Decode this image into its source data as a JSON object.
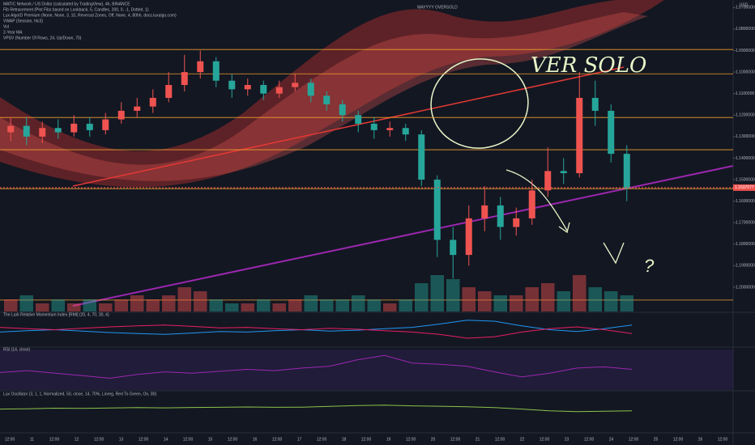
{
  "chart_data": {
    "type": "candlestick",
    "title": "MATIC Network / US Dollar (calculated by TradingView), 4h, BINANCE",
    "indicators_legend": [
      "Fib Retracement (Plot Fibs based on Lookback, 5, Candles, 200, 0, -1, Dotted, 1)",
      "Lux AlgoID Premium (None, None, 3, 10, Reversal Zones, Off, None, 4, 80hh, docs.luxalgo.com)",
      "VWAP (Session, hlc3)",
      "Vol",
      "2-Year MA",
      "VPSV (Number Of Rows, 24, Up/Down, 70)"
    ],
    "headline": "MAYYYY OVERSOLD",
    "currency": "USD",
    "annotations": [
      "VER SOLO",
      "?"
    ],
    "last_price": {
      "value": 1.1537077,
      "label": "1.1537077"
    },
    "ylim": [
      1.0695,
      1.2113
    ],
    "yticks": [
      {
        "value": 1.2,
        "label": "1.2000000"
      },
      {
        "value": 1.19,
        "label": "1.1900000"
      },
      {
        "value": 1.18,
        "label": "1.1800000"
      },
      {
        "value": 1.17,
        "label": "1.1700000"
      },
      {
        "value": 1.16,
        "label": "1.1600000"
      },
      {
        "value": 1.15,
        "label": "1.1500000"
      },
      {
        "value": 1.14,
        "label": "1.1400000"
      },
      {
        "value": 1.13,
        "label": "1.1300000"
      },
      {
        "value": 1.12,
        "label": "1.1200000"
      },
      {
        "value": 1.11,
        "label": "1.1100000"
      },
      {
        "value": 1.1,
        "label": "1.1000000"
      },
      {
        "value": 1.09,
        "label": "1.0900000"
      },
      {
        "value": 1.08,
        "label": "1.0800000"
      },
      {
        "value": 1.07,
        "label": "1.0700000"
      }
    ],
    "fib_levels": [
      1.206,
      1.1542,
      1.1361,
      1.1211,
      1.1008,
      1.0895
    ],
    "time_labels": [
      "12:00",
      "11",
      "12:00",
      "12",
      "12:00",
      "13",
      "12:00",
      "14",
      "12:00",
      "15",
      "12:00",
      "16",
      "12:00",
      "17",
      "12:00",
      "18",
      "12:00",
      "19",
      "12:00",
      "20",
      "12:00",
      "21",
      "12:00",
      "22",
      "12:00",
      "23",
      "12:00",
      "24",
      "12:00",
      "25",
      "12:00",
      "26",
      "12:00"
    ],
    "open": [
      1.128,
      1.125,
      1.13,
      1.126,
      1.128,
      1.124,
      1.127,
      1.122,
      1.118,
      1.116,
      1.112,
      1.106,
      1.1,
      1.095,
      1.104,
      1.108,
      1.106,
      1.11,
      1.107,
      1.105,
      1.111,
      1.115,
      1.12,
      1.124,
      1.127,
      1.126,
      1.129,
      1.15,
      1.178,
      1.185,
      1.168,
      1.162,
      1.172,
      1.168,
      1.155,
      1.146,
      1.147,
      1.112,
      1.118,
      1.138
    ],
    "high": [
      1.132,
      1.134,
      1.133,
      1.131,
      1.13,
      1.13,
      1.129,
      1.124,
      1.121,
      1.119,
      1.114,
      1.109,
      1.103,
      1.107,
      1.112,
      1.111,
      1.113,
      1.112,
      1.109,
      1.114,
      1.118,
      1.123,
      1.128,
      1.131,
      1.13,
      1.132,
      1.153,
      1.186,
      1.196,
      1.19,
      1.174,
      1.178,
      1.176,
      1.171,
      1.158,
      1.152,
      1.149,
      1.125,
      1.142,
      1.16
    ],
    "low": [
      1.121,
      1.121,
      1.123,
      1.122,
      1.12,
      1.121,
      1.119,
      1.114,
      1.112,
      1.108,
      1.1,
      1.092,
      1.09,
      1.093,
      1.101,
      1.103,
      1.104,
      1.104,
      1.101,
      1.103,
      1.109,
      1.113,
      1.118,
      1.121,
      1.123,
      1.124,
      1.127,
      1.148,
      1.172,
      1.162,
      1.153,
      1.158,
      1.163,
      1.15,
      1.135,
      1.14,
      1.1,
      1.104,
      1.115,
      1.134
    ],
    "close": [
      1.125,
      1.13,
      1.126,
      1.128,
      1.124,
      1.127,
      1.122,
      1.118,
      1.116,
      1.112,
      1.106,
      1.1,
      1.095,
      1.104,
      1.108,
      1.106,
      1.11,
      1.107,
      1.105,
      1.111,
      1.115,
      1.12,
      1.124,
      1.127,
      1.126,
      1.129,
      1.15,
      1.178,
      1.185,
      1.168,
      1.162,
      1.172,
      1.168,
      1.155,
      1.146,
      1.147,
      1.112,
      1.118,
      1.138,
      1.154
    ],
    "volume": [
      3,
      4,
      2,
      3,
      2,
      3,
      2,
      3,
      4,
      3,
      4,
      6,
      5,
      3,
      2,
      2,
      3,
      2,
      3,
      4,
      3,
      3,
      4,
      3,
      2,
      3,
      7,
      9,
      8,
      6,
      5,
      4,
      4,
      6,
      7,
      5,
      9,
      6,
      5,
      4
    ],
    "up_color": "#26a69a",
    "down_color": "#ef5350",
    "panes": [
      {
        "name": "The Lark Relative Momentum Index [RMI] (20, 4, 70, 30, 4)",
        "ylim": [
          20,
          80
        ],
        "series": [
          {
            "color": "#2196f3",
            "values": [
              45,
              48,
              50,
              47,
              44,
              42,
              40,
              43,
              46,
              45,
              48,
              50,
              47,
              49,
              52,
              55,
              62,
              70,
              68,
              58,
              50,
              46,
              52,
              60
            ]
          },
          {
            "color": "#e91e63",
            "values": [
              55,
              52,
              50,
              53,
              56,
              58,
              60,
              57,
              54,
              55,
              52,
              50,
              53,
              51,
              48,
              45,
              40,
              32,
              35,
              45,
              52,
              56,
              50,
              42
            ]
          }
        ]
      },
      {
        "name": "RSI (14, close)",
        "ylim": [
          20,
          80
        ],
        "series": [
          {
            "color": "#9c27b0",
            "values": [
              45,
              48,
              44,
              40,
              36,
              42,
              46,
              44,
              47,
              50,
              48,
              52,
              55,
              65,
              72,
              60,
              58,
              55,
              46,
              38,
              44,
              52,
              54,
              50
            ]
          }
        ]
      },
      {
        "name": "Lux Oscillator (3, 1, 1, Normalized, 50, close, 14, 70%, Linreg, Red To Green, On, 80)",
        "ylim": [
          -100,
          100
        ],
        "series": [
          {
            "color": "#8bc34a",
            "values": [
              20,
              22,
              25,
              24,
              26,
              28,
              27,
              29,
              30,
              32,
              30,
              31,
              35,
              40,
              42,
              38,
              36,
              33,
              28,
              20,
              10,
              6,
              8,
              10
            ]
          }
        ]
      }
    ]
  }
}
